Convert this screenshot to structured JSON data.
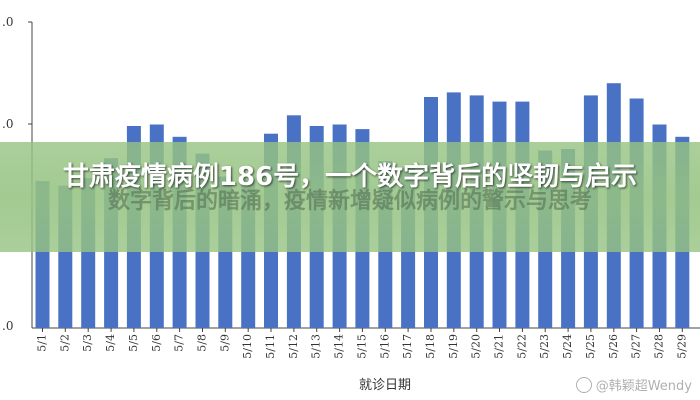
{
  "chart_data": {
    "type": "bar",
    "categories": [
      "5/1",
      "5/2",
      "5/3",
      "5/4",
      "5/5",
      "5/6",
      "5/7",
      "5/8",
      "5/9",
      "5/10",
      "5/11",
      "5/12",
      "5/13",
      "5/14",
      "5/15",
      "5/16",
      "5/17",
      "5/18",
      "5/19",
      "5/20",
      "5/21",
      "5/22",
      "5/23",
      "5/24",
      "5/25",
      "5/26",
      "5/27",
      "5/28",
      "5/29"
    ],
    "values": [
      3.96,
      3.93,
      3.98,
      4.11,
      4.32,
      4.33,
      4.25,
      4.14,
      3.99,
      3.97,
      4.27,
      4.39,
      4.32,
      4.33,
      4.3,
      4.09,
      4.05,
      4.51,
      4.54,
      4.52,
      4.48,
      4.48,
      4.16,
      4.17,
      4.52,
      4.6,
      4.5,
      4.33,
      4.25
    ],
    "ylim": [
      3.0,
      5.0
    ],
    "ytick_labels": [
      ".0",
      ".0",
      ".0"
    ],
    "xlabel": "就诊日期",
    "ylabel": "",
    "bar_color": "#4a72c4",
    "grid": false,
    "legend": "none"
  },
  "overlay": {
    "title": "甘肃疫情病例186号，一个数字背后的坚韧与启示",
    "background_text": "数字背后的暗涌，疫情新增疑似病例的警示与思考",
    "watermark": "@韩颖超Wendy",
    "banner_color": "#96c382"
  }
}
